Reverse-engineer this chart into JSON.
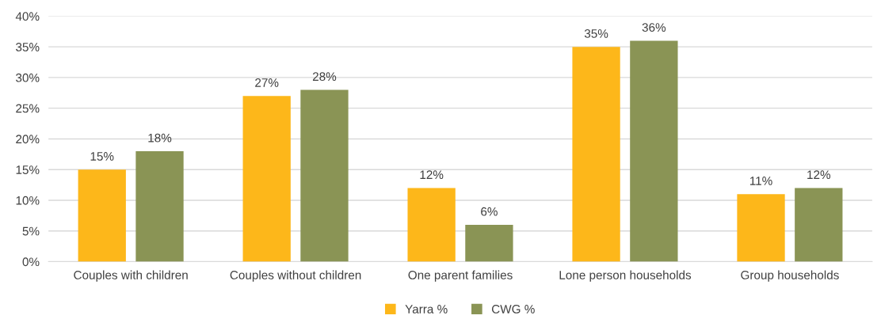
{
  "chart_data": {
    "type": "bar",
    "categories": [
      "Couples with children",
      "Couples without children",
      "One parent families",
      "Lone person households",
      "Group households"
    ],
    "series": [
      {
        "name": "Yarra %",
        "color": "#fdb71a",
        "values": [
          15,
          27,
          12,
          35,
          11
        ],
        "value_labels": [
          "15%",
          "27%",
          "12%",
          "35%",
          "11%"
        ]
      },
      {
        "name": "CWG %",
        "color": "#8a9455",
        "values": [
          18,
          28,
          6,
          36,
          12
        ],
        "value_labels": [
          "18%",
          "28%",
          "6%",
          "36%",
          "12%"
        ]
      }
    ],
    "ylim": [
      0,
      40
    ],
    "yticks": [
      {
        "value": 0,
        "label": "0%"
      },
      {
        "value": 5,
        "label": "5%"
      },
      {
        "value": 10,
        "label": "10%"
      },
      {
        "value": 15,
        "label": "15%"
      },
      {
        "value": 20,
        "label": "20%"
      },
      {
        "value": 25,
        "label": "25%"
      },
      {
        "value": 30,
        "label": "30%"
      },
      {
        "value": 35,
        "label": "35%"
      },
      {
        "value": 40,
        "label": "40%"
      }
    ],
    "grid": "y",
    "legend": "bottom"
  }
}
